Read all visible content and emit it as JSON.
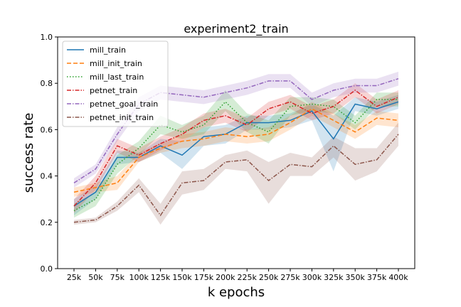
{
  "chart_data": {
    "type": "line",
    "title": "experiment2_train",
    "xlabel": "k epochs",
    "ylabel": "success rate",
    "ylim": [
      0.0,
      1.0
    ],
    "yticks": [
      "0.0",
      "0.2",
      "0.4",
      "0.6",
      "0.8",
      "1.0"
    ],
    "ytick_values": [
      0.0,
      0.2,
      0.4,
      0.6,
      0.8,
      1.0
    ],
    "categories": [
      "25k",
      "50k",
      "75k",
      "100k",
      "125k",
      "150k",
      "175k",
      "200k",
      "225k",
      "250k",
      "275k",
      "300k",
      "325k",
      "350k",
      "375k",
      "400k"
    ],
    "legend_position": "top-left",
    "grid": false,
    "series": [
      {
        "name": "mill_train",
        "color": "#1f77b4",
        "dash": "solid",
        "values": [
          0.27,
          0.33,
          0.48,
          0.48,
          0.53,
          0.49,
          0.57,
          0.58,
          0.63,
          0.63,
          0.64,
          0.68,
          0.56,
          0.71,
          0.69,
          0.72
        ],
        "lower": [
          0.23,
          0.3,
          0.45,
          0.46,
          0.5,
          0.43,
          0.53,
          0.54,
          0.6,
          0.6,
          0.61,
          0.64,
          0.42,
          0.68,
          0.66,
          0.69
        ],
        "upper": [
          0.3,
          0.36,
          0.51,
          0.5,
          0.56,
          0.55,
          0.61,
          0.62,
          0.66,
          0.66,
          0.67,
          0.71,
          0.66,
          0.74,
          0.72,
          0.75
        ]
      },
      {
        "name": "mill_init_train",
        "color": "#ff7f0e",
        "dash": "dashed",
        "values": [
          0.33,
          0.35,
          0.37,
          0.48,
          0.52,
          0.55,
          0.56,
          0.58,
          0.57,
          0.58,
          0.63,
          0.69,
          0.64,
          0.59,
          0.65,
          0.64
        ],
        "lower": [
          0.31,
          0.33,
          0.34,
          0.46,
          0.5,
          0.52,
          0.53,
          0.55,
          0.54,
          0.55,
          0.6,
          0.66,
          0.61,
          0.56,
          0.62,
          0.61
        ],
        "upper": [
          0.35,
          0.37,
          0.4,
          0.5,
          0.54,
          0.58,
          0.59,
          0.61,
          0.6,
          0.61,
          0.66,
          0.72,
          0.67,
          0.62,
          0.68,
          0.67
        ]
      },
      {
        "name": "mill_last_train",
        "color": "#2ca02c",
        "dash": "dotted",
        "values": [
          0.25,
          0.3,
          0.45,
          0.52,
          0.62,
          0.59,
          0.62,
          0.72,
          0.63,
          0.59,
          0.7,
          0.71,
          0.7,
          0.63,
          0.73,
          0.73
        ],
        "lower": [
          0.22,
          0.27,
          0.41,
          0.49,
          0.58,
          0.56,
          0.58,
          0.68,
          0.59,
          0.54,
          0.66,
          0.68,
          0.67,
          0.6,
          0.7,
          0.7
        ],
        "upper": [
          0.28,
          0.33,
          0.49,
          0.55,
          0.66,
          0.62,
          0.66,
          0.77,
          0.67,
          0.64,
          0.74,
          0.74,
          0.73,
          0.66,
          0.76,
          0.76
        ]
      },
      {
        "name": "petnet_train",
        "color": "#d62728",
        "dash": "dashdot",
        "values": [
          0.27,
          0.37,
          0.53,
          0.49,
          0.54,
          0.58,
          0.64,
          0.66,
          0.62,
          0.69,
          0.72,
          0.67,
          0.7,
          0.77,
          0.7,
          0.74
        ],
        "lower": [
          0.24,
          0.34,
          0.5,
          0.46,
          0.51,
          0.55,
          0.61,
          0.63,
          0.59,
          0.66,
          0.69,
          0.64,
          0.67,
          0.74,
          0.67,
          0.71
        ],
        "upper": [
          0.3,
          0.4,
          0.56,
          0.52,
          0.57,
          0.61,
          0.67,
          0.69,
          0.65,
          0.72,
          0.75,
          0.7,
          0.73,
          0.8,
          0.73,
          0.77
        ]
      },
      {
        "name": "petnet_goal_train",
        "color": "#9467bd",
        "dash": "dashdot",
        "values": [
          0.37,
          0.43,
          0.58,
          0.71,
          0.76,
          0.75,
          0.74,
          0.76,
          0.78,
          0.81,
          0.81,
          0.73,
          0.77,
          0.79,
          0.79,
          0.82
        ],
        "lower": [
          0.35,
          0.41,
          0.55,
          0.68,
          0.73,
          0.72,
          0.71,
          0.73,
          0.75,
          0.78,
          0.78,
          0.7,
          0.74,
          0.76,
          0.76,
          0.79
        ],
        "upper": [
          0.39,
          0.45,
          0.61,
          0.74,
          0.79,
          0.78,
          0.77,
          0.79,
          0.81,
          0.84,
          0.84,
          0.76,
          0.8,
          0.82,
          0.82,
          0.85
        ]
      },
      {
        "name": "petnet_init_train",
        "color": "#8c564b",
        "dash": "dashdot",
        "values": [
          0.2,
          0.21,
          0.27,
          0.36,
          0.23,
          0.37,
          0.38,
          0.46,
          0.47,
          0.38,
          0.45,
          0.44,
          0.53,
          0.45,
          0.47,
          0.58
        ],
        "lower": [
          0.19,
          0.2,
          0.25,
          0.33,
          0.19,
          0.32,
          0.34,
          0.43,
          0.42,
          0.28,
          0.4,
          0.4,
          0.48,
          0.38,
          0.42,
          0.53
        ],
        "upper": [
          0.21,
          0.22,
          0.29,
          0.39,
          0.28,
          0.42,
          0.43,
          0.49,
          0.51,
          0.46,
          0.5,
          0.48,
          0.57,
          0.52,
          0.52,
          0.63
        ]
      }
    ]
  }
}
